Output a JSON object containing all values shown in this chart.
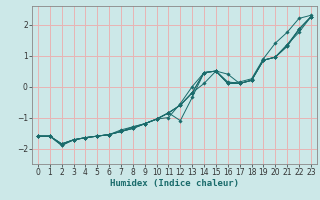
{
  "title": "",
  "xlabel": "Humidex (Indice chaleur)",
  "ylabel": "",
  "xlim": [
    -0.5,
    23.5
  ],
  "ylim": [
    -2.5,
    2.6
  ],
  "xticks": [
    0,
    1,
    2,
    3,
    4,
    5,
    6,
    7,
    8,
    9,
    10,
    11,
    12,
    13,
    14,
    15,
    16,
    17,
    18,
    19,
    20,
    21,
    22,
    23
  ],
  "yticks": [
    -2,
    -1,
    0,
    1,
    2
  ],
  "bg_color": "#cce8e8",
  "line_color": "#1a6b6b",
  "grid_color": "#e8b4b4",
  "lines": [
    {
      "x": [
        0,
        1,
        2,
        3,
        4,
        5,
        6,
        7,
        8,
        9,
        10,
        11,
        12,
        13,
        14,
        15,
        16,
        17,
        18,
        19,
        20,
        21,
        22,
        23
      ],
      "y": [
        -1.6,
        -1.6,
        -1.9,
        -1.72,
        -1.65,
        -1.6,
        -1.55,
        -1.4,
        -1.3,
        -1.2,
        -1.05,
        -0.85,
        -1.1,
        -0.35,
        0.45,
        0.5,
        0.1,
        0.15,
        0.25,
        0.9,
        1.4,
        1.75,
        2.2,
        2.3
      ]
    },
    {
      "x": [
        0,
        1,
        2,
        3,
        4,
        5,
        6,
        7,
        8,
        9,
        10,
        11,
        12,
        13,
        14,
        15,
        16,
        17,
        18,
        19,
        20,
        21,
        22,
        23
      ],
      "y": [
        -1.6,
        -1.6,
        -1.85,
        -1.72,
        -1.65,
        -1.6,
        -1.55,
        -1.45,
        -1.35,
        -1.2,
        -1.05,
        -0.85,
        -0.6,
        -0.2,
        0.1,
        0.5,
        0.15,
        0.1,
        0.2,
        0.85,
        0.95,
        1.3,
        1.85,
        2.25
      ]
    },
    {
      "x": [
        0,
        1,
        2,
        3,
        4,
        5,
        6,
        7,
        8,
        9,
        10,
        11,
        12,
        13,
        14,
        15,
        16,
        17,
        18,
        19,
        20,
        21,
        22,
        23
      ],
      "y": [
        -1.6,
        -1.6,
        -1.85,
        -1.72,
        -1.65,
        -1.6,
        -1.55,
        -1.45,
        -1.35,
        -1.2,
        -1.05,
        -0.85,
        -0.6,
        -0.2,
        0.45,
        0.5,
        0.1,
        0.1,
        0.2,
        0.85,
        0.95,
        1.3,
        1.85,
        2.25
      ]
    },
    {
      "x": [
        0,
        1,
        2,
        3,
        4,
        5,
        6,
        7,
        8,
        9,
        10,
        11,
        12,
        13,
        14,
        15,
        16,
        17,
        18,
        19,
        20,
        21,
        22,
        23
      ],
      "y": [
        -1.6,
        -1.6,
        -1.9,
        -1.72,
        -1.65,
        -1.6,
        -1.55,
        -1.45,
        -1.3,
        -1.2,
        -1.05,
        -1.0,
        -0.55,
        0.0,
        0.45,
        0.5,
        0.4,
        0.1,
        0.2,
        0.85,
        0.95,
        1.35,
        1.75,
        2.25
      ]
    },
    {
      "x": [
        0,
        1,
        2,
        3,
        4,
        5,
        6,
        7,
        8,
        9,
        10,
        11,
        12,
        13,
        14,
        15,
        16,
        17,
        18,
        19,
        20,
        21,
        22,
        23
      ],
      "y": [
        -1.6,
        -1.6,
        -1.85,
        -1.72,
        -1.65,
        -1.6,
        -1.55,
        -1.45,
        -1.35,
        -1.2,
        -1.05,
        -0.85,
        -0.6,
        -0.2,
        0.45,
        0.5,
        0.1,
        0.1,
        0.2,
        0.85,
        0.95,
        1.35,
        1.85,
        2.25
      ]
    }
  ],
  "marker": "D",
  "marker_size": 1.8,
  "linewidth": 0.7,
  "tick_labelsize": 5.5,
  "xlabel_fontsize": 6.5
}
